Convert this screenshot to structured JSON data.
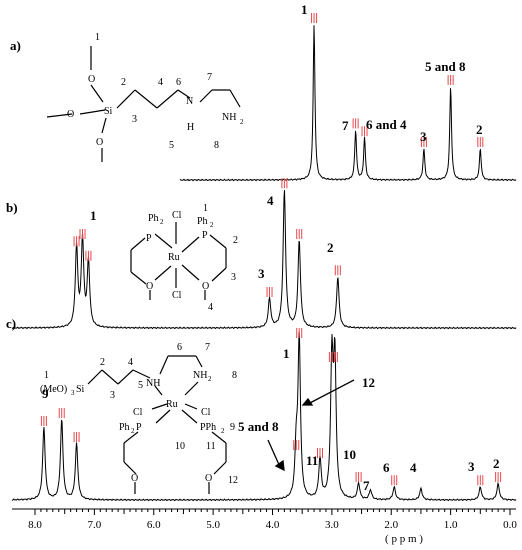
{
  "chart_data": [
    {
      "type": "line",
      "panel": "a)",
      "series": [
        {
          "x": [
            3.3,
            2.6,
            2.45,
            1.45,
            1.0,
            0.5
          ],
          "y": [
            1.0,
            0.32,
            0.27,
            0.2,
            0.6,
            0.2
          ]
        }
      ],
      "peak_labels": [
        {
          "text": "1",
          "x": 3.3
        },
        {
          "text": "7",
          "x": 2.6
        },
        {
          "text": "6 and 4",
          "x": 2.4
        },
        {
          "text": "3",
          "x": 1.45
        },
        {
          "text": "5 and 8",
          "x": 1.0
        },
        {
          "text": "2",
          "x": 0.5
        }
      ],
      "structure_labels": [
        "1",
        "2",
        "3",
        "4",
        "5",
        "6",
        "7",
        "8",
        "Si",
        "N",
        "H",
        "NH",
        "2"
      ]
    },
    {
      "type": "line",
      "panel": "b)",
      "series": [
        {
          "x": [
            7.3,
            7.2,
            7.1,
            4.05,
            3.8,
            3.55,
            2.9
          ],
          "y": [
            0.55,
            0.6,
            0.45,
            0.2,
            0.95,
            0.6,
            0.35
          ]
        }
      ],
      "peak_labels": [
        {
          "text": "1",
          "x": 7.2
        },
        {
          "text": "4",
          "x": 3.8
        },
        {
          "text": "3",
          "x": 4.05
        },
        {
          "text": "2",
          "x": 2.9
        }
      ],
      "structure_labels": [
        "Ph",
        "2",
        "Cl",
        "1",
        "Ph",
        "2",
        "P",
        "P",
        "2",
        "Ru",
        "O",
        "3",
        "O",
        "Cl",
        "4"
      ]
    },
    {
      "type": "line",
      "panel": "c)",
      "series": [
        {
          "x": [
            7.85,
            7.55,
            7.3,
            3.6,
            3.55,
            3.2,
            3.0,
            2.95,
            2.55,
            2.35,
            1.95,
            1.5,
            0.5,
            0.2
          ],
          "y": [
            0.45,
            0.5,
            0.35,
            0.3,
            1.0,
            0.25,
            0.85,
            0.85,
            0.1,
            0.06,
            0.08,
            0.07,
            0.08,
            0.1
          ]
        }
      ],
      "peak_labels": [
        {
          "text": "1",
          "x": 3.55
        },
        {
          "text": "9",
          "x": 7.6
        },
        {
          "text": "5 and 8",
          "x": 3.7
        },
        {
          "text": "11",
          "x": 3.2
        },
        {
          "text": "12",
          "x": 2.9
        },
        {
          "text": "10",
          "x": 2.55
        },
        {
          "text": "7",
          "x": 2.35
        },
        {
          "text": "6",
          "x": 1.95
        },
        {
          "text": "4",
          "x": 1.5
        },
        {
          "text": "3",
          "x": 0.5
        },
        {
          "text": "2",
          "x": 0.2
        }
      ],
      "structure_labels": [
        "1",
        "(MeO)",
        "3",
        "Si",
        "2",
        "3",
        "4",
        "5",
        "NH",
        "6",
        "7",
        "NH",
        "2",
        "8",
        "Cl",
        "Ru",
        "Cl",
        "Ph",
        "2",
        "P",
        "PPh",
        "2",
        "9",
        "10",
        "11",
        "O",
        "O",
        "12"
      ]
    }
  ],
  "xaxis": {
    "label": "( p p m )",
    "ticks": [
      "8.0",
      "7.0",
      "6.0",
      "5.0",
      "4.0",
      "3.0",
      "2.0",
      "1.0",
      "0.0"
    ],
    "range": [
      8.2,
      -0.1
    ]
  },
  "peak_marker_color": "#e8474c",
  "line_color": "#000000"
}
